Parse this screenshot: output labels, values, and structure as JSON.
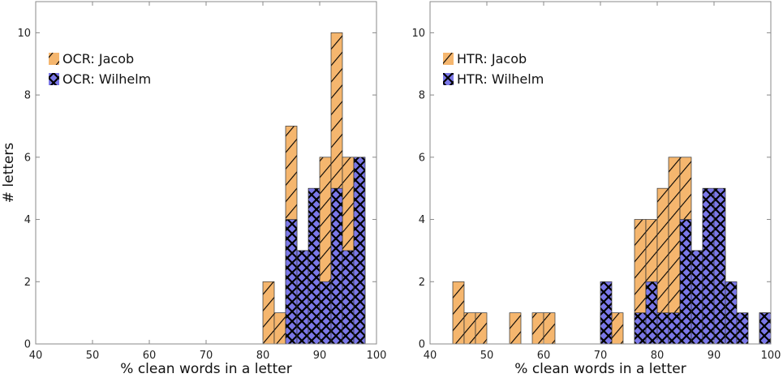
{
  "chart_data": [
    {
      "type": "bar",
      "subtype": "overlaid-histogram",
      "xlabel": "% clean words in a letter",
      "ylabel": "# letters",
      "xlim": [
        40,
        100
      ],
      "ylim": [
        0,
        11
      ],
      "xticks": [
        "40",
        "50",
        "60",
        "70",
        "80",
        "90",
        "100"
      ],
      "yticks": [
        "0",
        "2",
        "4",
        "6",
        "8",
        "10"
      ],
      "grid": false,
      "legend_position": "top-left",
      "bin_width": 2,
      "bin_starts": [
        80,
        82,
        84,
        86,
        88,
        90,
        92,
        94,
        96
      ],
      "series": [
        {
          "name": "OCR: Jacob",
          "color": "#f5b66e",
          "hatch": "/",
          "values": [
            2,
            1,
            7,
            3,
            3,
            6,
            10,
            6,
            4
          ]
        },
        {
          "name": "OCR: Wilhelm",
          "color": "#7b78e8",
          "hatch": "x",
          "values": [
            0,
            0,
            4,
            3,
            5,
            2,
            5,
            3,
            6
          ]
        }
      ]
    },
    {
      "type": "bar",
      "subtype": "overlaid-histogram",
      "xlabel": "% clean words in a letter",
      "ylabel": "",
      "xlim": [
        40,
        100
      ],
      "ylim": [
        0,
        11
      ],
      "xticks": [
        "40",
        "50",
        "60",
        "70",
        "80",
        "90",
        "100"
      ],
      "yticks": [
        "0",
        "2",
        "4",
        "6",
        "8",
        "10"
      ],
      "grid": false,
      "legend_position": "top-left",
      "bin_width": 2,
      "bin_starts": [
        44,
        46,
        48,
        54,
        58,
        60,
        70,
        72,
        76,
        78,
        80,
        82,
        84,
        86,
        88,
        90,
        92,
        94,
        98
      ],
      "series": [
        {
          "name": "HTR: Jacob",
          "color": "#f5b66e",
          "hatch": "/",
          "values": [
            2,
            1,
            1,
            1,
            1,
            1,
            1,
            1,
            4,
            4,
            5,
            6,
            6,
            3,
            4,
            3,
            1,
            0,
            1
          ]
        },
        {
          "name": "HTR: Wilhelm",
          "color": "#7b78e8",
          "hatch": "x",
          "values": [
            0,
            0,
            0,
            0,
            0,
            0,
            2,
            0,
            1,
            2,
            1,
            1,
            4,
            3,
            5,
            5,
            2,
            1,
            1
          ]
        }
      ]
    }
  ]
}
